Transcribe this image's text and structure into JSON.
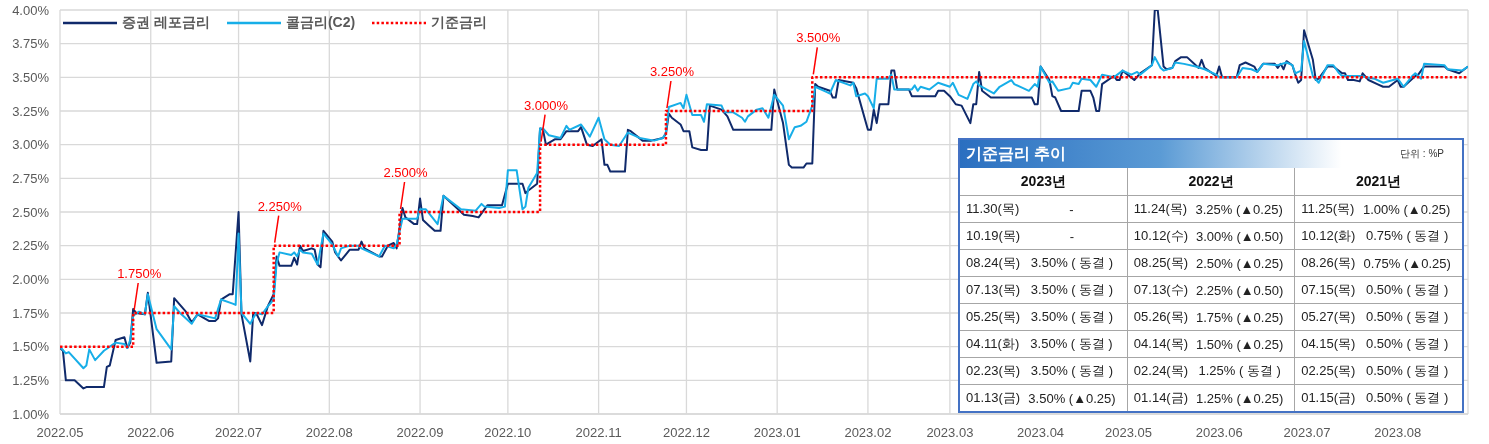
{
  "chart_data": [
    {
      "type": "line",
      "grid": true,
      "legend": "top left",
      "xlim": [
        "2022-05-01",
        "2023-08-25"
      ],
      "xticks": [
        {
          "value": "2022-05-01",
          "label": "2022.05"
        },
        {
          "value": "2022-06-01",
          "label": "2022.06"
        },
        {
          "value": "2022-07-01",
          "label": "2022.07"
        },
        {
          "value": "2022-08-01",
          "label": "2022.08"
        },
        {
          "value": "2022-09-01",
          "label": "2022.09"
        },
        {
          "value": "2022-10-01",
          "label": "2022.10"
        },
        {
          "value": "2022-11-01",
          "label": "2022.11"
        },
        {
          "value": "2022-12-01",
          "label": "2022.12"
        },
        {
          "value": "2023-01-01",
          "label": "2023.01"
        },
        {
          "value": "2023-02-01",
          "label": "2023.02"
        },
        {
          "value": "2023-03-01",
          "label": "2023.03"
        },
        {
          "value": "2023-04-01",
          "label": "2023.04"
        },
        {
          "value": "2023-05-01",
          "label": "2023.05"
        },
        {
          "value": "2023-06-01",
          "label": "2023.06"
        },
        {
          "value": "2023-07-01",
          "label": "2023.07"
        },
        {
          "value": "2023-08-01",
          "label": "2023.08"
        }
      ],
      "ylim": [
        1,
        4
      ],
      "yticks": [
        {
          "value": 1,
          "label": "1.00%"
        },
        {
          "value": 1.25,
          "label": "1.25%"
        },
        {
          "value": 1.5,
          "label": "1.50%"
        },
        {
          "value": 1.75,
          "label": "1.75%"
        },
        {
          "value": 2,
          "label": "2.00%"
        },
        {
          "value": 2.25,
          "label": "2.25%"
        },
        {
          "value": 2.5,
          "label": "2.50%"
        },
        {
          "value": 2.75,
          "label": "2.75%"
        },
        {
          "value": 3,
          "label": "3.00%"
        },
        {
          "value": 3.25,
          "label": "3.25%"
        },
        {
          "value": 3.5,
          "label": "3.50%"
        },
        {
          "value": 3.75,
          "label": "3.75%"
        },
        {
          "value": 4,
          "label": "4.00%"
        }
      ],
      "series": [
        {
          "name": "증권 레포금리",
          "color": "#102a6b",
          "x": [
            "2022-05-01",
            "2022-05-02",
            "2022-05-03",
            "2022-05-06",
            "2022-05-09",
            "2022-05-10",
            "2022-05-16",
            "2022-05-17",
            "2022-05-18",
            "2022-05-20",
            "2022-05-23",
            "2022-05-24",
            "2022-05-25",
            "2022-05-26",
            "2022-05-27",
            "2022-05-30",
            "2022-05-31",
            "2022-06-03",
            "2022-06-08",
            "2022-06-09",
            "2022-06-13",
            "2022-06-15",
            "2022-06-17",
            "2022-06-21",
            "2022-06-23",
            "2022-06-24",
            "2022-06-25",
            "2022-06-28",
            "2022-06-29",
            "2022-07-01",
            "2022-07-02",
            "2022-07-05",
            "2022-07-06",
            "2022-07-07",
            "2022-07-09",
            "2022-07-11",
            "2022-07-13",
            "2022-07-14",
            "2022-07-15",
            "2022-07-19",
            "2022-07-20",
            "2022-07-21",
            "2022-07-22",
            "2022-07-23",
            "2022-07-26",
            "2022-07-27",
            "2022-07-28",
            "2022-07-29",
            "2022-07-30",
            "2022-08-02",
            "2022-08-03",
            "2022-08-05",
            "2022-08-08",
            "2022-08-11",
            "2022-08-12",
            "2022-08-13",
            "2022-08-18",
            "2022-08-19",
            "2022-08-21",
            "2022-08-23",
            "2022-08-24",
            "2022-08-26",
            "2022-08-27",
            "2022-08-30",
            "2022-08-31",
            "2022-09-01",
            "2022-09-02",
            "2022-09-04",
            "2022-09-06",
            "2022-09-08",
            "2022-09-09",
            "2022-09-14",
            "2022-09-16",
            "2022-09-19",
            "2022-09-21",
            "2022-09-23",
            "2022-09-24",
            "2022-09-29",
            "2022-10-01",
            "2022-10-06",
            "2022-10-07",
            "2022-10-08",
            "2022-10-11",
            "2022-10-12",
            "2022-10-13",
            "2022-10-14",
            "2022-10-17",
            "2022-10-19",
            "2022-10-21",
            "2022-10-25",
            "2022-10-26",
            "2022-10-28",
            "2022-10-30",
            "2022-11-02",
            "2022-11-03",
            "2022-11-04",
            "2022-11-05",
            "2022-11-10",
            "2022-11-11",
            "2022-11-12",
            "2022-11-16",
            "2022-11-19",
            "2022-11-23",
            "2022-11-24",
            "2022-11-25",
            "2022-11-26",
            "2022-11-29",
            "2022-11-30",
            "2022-12-02",
            "2022-12-03",
            "2022-12-06",
            "2022-12-08",
            "2022-12-09",
            "2022-12-13",
            "2022-12-15",
            "2022-12-17",
            "2022-12-30",
            "2022-12-31",
            "2023-01-03",
            "2023-01-05",
            "2023-01-06",
            "2023-01-10",
            "2023-01-11",
            "2023-01-13",
            "2023-01-14",
            "2023-01-15",
            "2023-01-19",
            "2023-01-20",
            "2023-01-21",
            "2023-01-22",
            "2023-01-27",
            "2023-01-28",
            "2023-02-01",
            "2023-02-02",
            "2023-02-03",
            "2023-02-04",
            "2023-02-05",
            "2023-02-08",
            "2023-02-09",
            "2023-02-10",
            "2023-02-11",
            "2023-02-15",
            "2023-02-16",
            "2023-02-24",
            "2023-02-25",
            "2023-02-27",
            "2023-03-01",
            "2023-03-03",
            "2023-03-05",
            "2023-03-08",
            "2023-03-09",
            "2023-03-10",
            "2023-03-11",
            "2023-03-12",
            "2023-03-15",
            "2023-03-29",
            "2023-03-30",
            "2023-03-31",
            "2023-04-01",
            "2023-04-04",
            "2023-04-05",
            "2023-04-06",
            "2023-04-08",
            "2023-04-14",
            "2023-04-15",
            "2023-04-18",
            "2023-04-19",
            "2023-04-20",
            "2023-04-21",
            "2023-04-22",
            "2023-04-26",
            "2023-04-27",
            "2023-04-28",
            "2023-04-29",
            "2023-05-03",
            "2023-05-05",
            "2023-05-09",
            "2023-05-10",
            "2023-05-11",
            "2023-05-13",
            "2023-05-14",
            "2023-05-16",
            "2023-05-17",
            "2023-05-19",
            "2023-05-21",
            "2023-05-24",
            "2023-05-25",
            "2023-05-26",
            "2023-05-27",
            "2023-05-31",
            "2023-06-01",
            "2023-06-02",
            "2023-06-07",
            "2023-06-08",
            "2023-06-10",
            "2023-06-13",
            "2023-06-14",
            "2023-06-16",
            "2023-06-20",
            "2023-06-21",
            "2023-06-22",
            "2023-06-23",
            "2023-06-24",
            "2023-06-26",
            "2023-06-27",
            "2023-06-28",
            "2023-06-29",
            "2023-06-30",
            "2023-07-03",
            "2023-07-04",
            "2023-07-05",
            "2023-07-08",
            "2023-07-10",
            "2023-07-13",
            "2023-07-14",
            "2023-07-15",
            "2023-07-17",
            "2023-07-19",
            "2023-07-20",
            "2023-07-22",
            "2023-07-25",
            "2023-07-27",
            "2023-07-29",
            "2023-08-01",
            "2023-08-02",
            "2023-08-03",
            "2023-08-07",
            "2023-08-08",
            "2023-08-10",
            "2023-08-17",
            "2023-08-18",
            "2023-08-22",
            "2023-08-25"
          ],
          "values": [
            1.49,
            1.47,
            1.25,
            1.25,
            1.19,
            1.2,
            1.2,
            1.35,
            1.36,
            1.55,
            1.57,
            1.49,
            1.53,
            1.78,
            1.75,
            1.74,
            1.9,
            1.38,
            1.39,
            1.86,
            1.76,
            1.68,
            1.74,
            1.69,
            1.69,
            1.71,
            1.85,
            1.89,
            1.89,
            2.5,
            1.74,
            1.39,
            1.75,
            1.75,
            1.66,
            1.8,
            1.89,
            2.17,
            2.1,
            2.1,
            2.16,
            2.11,
            2.25,
            2.21,
            2.23,
            2.22,
            2.11,
            2.09,
            2.36,
            2.28,
            2.2,
            2.14,
            2.22,
            2.22,
            2.28,
            2.23,
            2.17,
            2.17,
            2.25,
            2.27,
            2.23,
            2.53,
            2.46,
            2.41,
            2.41,
            2.6,
            2.44,
            2.4,
            2.36,
            2.36,
            2.62,
            2.52,
            2.48,
            2.47,
            2.46,
            2.52,
            2.55,
            2.55,
            2.71,
            2.71,
            2.64,
            2.66,
            2.71,
            3.12,
            3.11,
            3.0,
            3.04,
            3.04,
            3.1,
            3.1,
            3.13,
            3.0,
            2.99,
            3.04,
            2.85,
            2.85,
            2.8,
            2.8,
            3.11,
            3.1,
            3.03,
            3.03,
            3.05,
            3.08,
            3.23,
            3.2,
            3.15,
            3.1,
            3.1,
            2.98,
            2.96,
            2.96,
            3.29,
            3.26,
            3.21,
            3.11,
            3.11,
            3.41,
            3.16,
            2.85,
            2.83,
            2.83,
            2.86,
            2.86,
            3.45,
            3.43,
            3.4,
            3.35,
            3.35,
            3.48,
            3.46,
            3.42,
            3.11,
            3.11,
            3.26,
            3.16,
            3.3,
            3.3,
            3.55,
            3.55,
            3.41,
            3.41,
            3.36,
            3.36,
            3.4,
            3.4,
            3.36,
            3.3,
            3.29,
            3.16,
            3.3,
            3.3,
            3.54,
            3.4,
            3.35,
            3.35,
            3.3,
            3.3,
            3.58,
            3.48,
            3.36,
            3.35,
            3.25,
            3.25,
            3.4,
            3.4,
            3.35,
            3.25,
            3.25,
            3.45,
            3.51,
            3.48,
            3.48,
            3.55,
            3.48,
            3.53,
            3.59,
            4.0,
            4.0,
            3.58,
            3.56,
            3.57,
            3.62,
            3.65,
            3.65,
            3.59,
            3.57,
            3.63,
            3.57,
            3.51,
            3.58,
            3.5,
            3.5,
            3.59,
            3.61,
            3.58,
            3.54,
            3.6,
            3.6,
            3.57,
            3.6,
            3.56,
            3.62,
            3.59,
            3.52,
            3.46,
            3.48,
            3.85,
            3.63,
            3.48,
            3.49,
            3.58,
            3.58,
            3.53,
            3.53,
            3.48,
            3.48,
            3.47,
            3.53,
            3.48,
            3.45,
            3.43,
            3.43,
            3.48,
            3.43,
            3.43,
            3.51,
            3.52,
            3.58,
            3.58,
            3.56,
            3.53,
            3.58
          ]
        },
        {
          "name": "콜금리(C2)",
          "color": "#17aee8",
          "x": [
            "2022-05-01",
            "2022-05-03",
            "2022-05-04",
            "2022-05-09",
            "2022-05-10",
            "2022-05-11",
            "2022-05-13",
            "2022-05-16",
            "2022-05-20",
            "2022-05-23",
            "2022-05-24",
            "2022-05-25",
            "2022-05-26",
            "2022-05-28",
            "2022-05-30",
            "2022-05-31",
            "2022-06-03",
            "2022-06-08",
            "2022-06-09",
            "2022-06-11",
            "2022-06-15",
            "2022-06-17",
            "2022-06-23",
            "2022-06-25",
            "2022-06-29",
            "2022-06-30",
            "2022-07-01",
            "2022-07-02",
            "2022-07-05",
            "2022-07-07",
            "2022-07-09",
            "2022-07-11",
            "2022-07-13",
            "2022-07-14",
            "2022-07-15",
            "2022-07-19",
            "2022-07-20",
            "2022-07-21",
            "2022-07-22",
            "2022-07-23",
            "2022-07-26",
            "2022-07-28",
            "2022-07-30",
            "2022-08-02",
            "2022-08-04",
            "2022-08-05",
            "2022-08-08",
            "2022-08-11",
            "2022-08-12",
            "2022-08-18",
            "2022-08-20",
            "2022-08-23",
            "2022-08-24",
            "2022-08-26",
            "2022-08-31",
            "2022-09-01",
            "2022-09-03",
            "2022-09-07",
            "2022-09-09",
            "2022-09-15",
            "2022-09-20",
            "2022-09-22",
            "2022-09-23",
            "2022-09-28",
            "2022-09-30",
            "2022-10-01",
            "2022-10-04",
            "2022-10-06",
            "2022-10-07",
            "2022-10-08",
            "2022-10-11",
            "2022-10-12",
            "2022-10-13",
            "2022-10-15",
            "2022-10-19",
            "2022-10-21",
            "2022-10-22",
            "2022-10-26",
            "2022-10-29",
            "2022-11-01",
            "2022-11-03",
            "2022-11-05",
            "2022-11-08",
            "2022-11-11",
            "2022-11-15",
            "2022-11-20",
            "2022-11-23",
            "2022-11-24",
            "2022-11-25",
            "2022-11-29",
            "2022-11-30",
            "2022-12-01",
            "2022-12-03",
            "2022-12-06",
            "2022-12-07",
            "2022-12-08",
            "2022-12-13",
            "2022-12-14",
            "2022-12-17",
            "2022-12-20",
            "2022-12-21",
            "2022-12-22",
            "2022-12-25",
            "2022-12-27",
            "2022-12-29",
            "2022-12-31",
            "2023-01-03",
            "2023-01-05",
            "2023-01-07",
            "2023-01-09",
            "2023-01-11",
            "2023-01-13",
            "2023-01-14",
            "2023-01-18",
            "2023-01-19",
            "2023-01-21",
            "2023-01-26",
            "2023-01-27",
            "2023-01-28",
            "2023-01-31",
            "2023-02-01",
            "2023-02-03",
            "2023-02-04",
            "2023-02-08",
            "2023-02-09",
            "2023-02-10",
            "2023-02-16",
            "2023-02-17",
            "2023-02-18",
            "2023-02-19",
            "2023-02-22",
            "2023-02-25",
            "2023-03-01",
            "2023-03-02",
            "2023-03-04",
            "2023-03-07",
            "2023-03-09",
            "2023-03-10",
            "2023-03-11",
            "2023-03-16",
            "2023-03-18",
            "2023-03-22",
            "2023-03-23",
            "2023-03-26",
            "2023-03-28",
            "2023-03-30",
            "2023-03-31",
            "2023-04-01",
            "2023-04-04",
            "2023-04-05",
            "2023-04-07",
            "2023-04-11",
            "2023-04-12",
            "2023-04-14",
            "2023-04-15",
            "2023-04-18",
            "2023-04-20",
            "2023-04-22",
            "2023-04-26",
            "2023-04-29",
            "2023-05-02",
            "2023-05-04",
            "2023-05-05",
            "2023-05-09",
            "2023-05-10",
            "2023-05-12",
            "2023-05-13",
            "2023-05-16",
            "2023-05-17",
            "2023-05-20",
            "2023-05-24",
            "2023-05-27",
            "2023-05-31",
            "2023-06-01",
            "2023-06-07",
            "2023-06-09",
            "2023-06-12",
            "2023-06-14",
            "2023-06-16",
            "2023-06-21",
            "2023-06-24",
            "2023-06-26",
            "2023-06-27",
            "2023-06-29",
            "2023-06-30",
            "2023-07-03",
            "2023-07-05",
            "2023-07-08",
            "2023-07-10",
            "2023-07-12",
            "2023-07-13",
            "2023-07-19",
            "2023-07-24",
            "2023-07-27",
            "2023-08-01",
            "2023-08-03",
            "2023-08-06",
            "2023-08-07",
            "2023-08-09",
            "2023-08-10",
            "2023-08-17",
            "2023-08-18",
            "2023-08-23",
            "2023-08-25"
          ],
          "values": [
            1.5,
            1.45,
            1.46,
            1.34,
            1.36,
            1.48,
            1.4,
            1.47,
            1.53,
            1.52,
            1.49,
            1.55,
            1.73,
            1.76,
            1.74,
            1.89,
            1.63,
            1.48,
            1.8,
            1.75,
            1.67,
            1.74,
            1.71,
            1.85,
            1.82,
            1.81,
            2.34,
            1.75,
            1.67,
            1.75,
            1.74,
            1.8,
            1.85,
            2.12,
            2.2,
            2.18,
            2.2,
            2.17,
            2.22,
            2.2,
            2.19,
            2.11,
            2.34,
            2.26,
            2.17,
            2.23,
            2.25,
            2.25,
            2.23,
            2.17,
            2.25,
            2.23,
            2.26,
            2.45,
            2.45,
            2.52,
            2.52,
            2.41,
            2.62,
            2.52,
            2.51,
            2.56,
            2.54,
            2.53,
            2.54,
            2.81,
            2.81,
            2.52,
            2.54,
            2.68,
            2.79,
            3.12,
            3.12,
            3.07,
            3.05,
            3.14,
            3.11,
            3.15,
            3.06,
            3.2,
            3.04,
            3.0,
            2.99,
            3.09,
            3.05,
            3.03,
            3.05,
            3.09,
            3.28,
            3.31,
            3.27,
            3.37,
            3.22,
            3.22,
            3.17,
            3.3,
            3.29,
            3.24,
            3.24,
            3.2,
            3.17,
            3.21,
            3.26,
            3.27,
            3.2,
            3.37,
            3.29,
            3.04,
            3.13,
            3.14,
            3.17,
            3.29,
            3.43,
            3.39,
            3.38,
            3.48,
            3.44,
            3.46,
            3.36,
            3.38,
            3.36,
            3.27,
            3.49,
            3.49,
            3.52,
            3.41,
            3.41,
            3.44,
            3.4,
            3.43,
            3.41,
            3.46,
            3.43,
            3.46,
            3.37,
            3.34,
            3.45,
            3.47,
            3.44,
            3.38,
            3.43,
            3.48,
            3.45,
            3.42,
            3.4,
            3.45,
            3.43,
            3.58,
            3.46,
            3.47,
            3.4,
            3.42,
            3.46,
            3.45,
            3.49,
            3.48,
            3.43,
            3.52,
            3.5,
            3.55,
            3.52,
            3.54,
            3.52,
            3.59,
            3.65,
            3.57,
            3.55,
            3.57,
            3.61,
            3.6,
            3.58,
            3.56,
            3.52,
            3.5,
            3.5,
            3.57,
            3.56,
            3.54,
            3.6,
            3.59,
            3.61,
            3.59,
            3.53,
            3.55,
            3.77,
            3.51,
            3.46,
            3.59,
            3.59,
            3.53,
            3.51,
            3.51,
            3.49,
            3.46,
            3.49,
            3.43,
            3.51,
            3.53,
            3.49,
            3.6,
            3.59,
            3.56,
            3.55,
            3.58
          ]
        },
        {
          "name": "기준금리",
          "type": "step",
          "color": "#ff0000",
          "line_style": "dotted",
          "x": [
            "2022-05-01",
            "2022-05-26",
            "2022-07-13",
            "2022-08-25",
            "2022-10-12",
            "2022-11-24",
            "2023-01-13",
            "2023-08-25"
          ],
          "values": [
            1.5,
            1.75,
            2.25,
            2.5,
            3.0,
            3.25,
            3.5,
            3.5
          ]
        }
      ],
      "annotations": [
        {
          "text": "1.750%",
          "x": "2022-05-26",
          "y": 1.75
        },
        {
          "text": "2.250%",
          "x": "2022-07-13",
          "y": 2.25
        },
        {
          "text": "2.500%",
          "x": "2022-08-25",
          "y": 2.5
        },
        {
          "text": "3.000%",
          "x": "2022-10-12",
          "y": 3.0
        },
        {
          "text": "3.250%",
          "x": "2022-11-24",
          "y": 3.25
        },
        {
          "text": "3.500%",
          "x": "2023-01-13",
          "y": 3.5
        }
      ]
    },
    {
      "type": "other",
      "title": "기준금리 추이",
      "subtitle": "단위 : %P",
      "categories": [
        "2023년",
        "2022년",
        "2021년"
      ],
      "annotations": [
        "11.30(목) -",
        "11.24(목) 3.25% (▲0.25)",
        "11.25(목) 1.00% (▲0.25)",
        "10.19(목) -",
        "10.12(수) 3.00% (▲0.50)",
        "10.12(화) 0.75% ( 동결 )",
        "08.24(목) 3.50% ( 동결 )",
        "08.25(목) 2.50% (▲0.25)",
        "08.26(목) 0.75% (▲0.25)",
        "07.13(목) 3.50% ( 동결 )",
        "07.13(수) 2.25% (▲0.50)",
        "07.15(목) 0.50% ( 동결 )",
        "05.25(목) 3.50% ( 동결 )",
        "05.26(목) 1.75% (▲0.25)",
        "05.27(목) 0.50% ( 동결 )",
        "04.11(화) 3.50% ( 동결 )",
        "04.14(목) 1.50% (▲0.25)",
        "04.15(목) 0.50% ( 동결 )",
        "02.23(목) 3.50% ( 동결 )",
        "02.24(목) 1.25% ( 동결 )",
        "02.25(목) 0.50% ( 동결 )",
        "01.13(금) 3.50% (▲0.25)",
        "01.14(금) 1.25% (▲0.25)",
        "01.15(금) 0.50% ( 동결 )"
      ]
    }
  ]
}
